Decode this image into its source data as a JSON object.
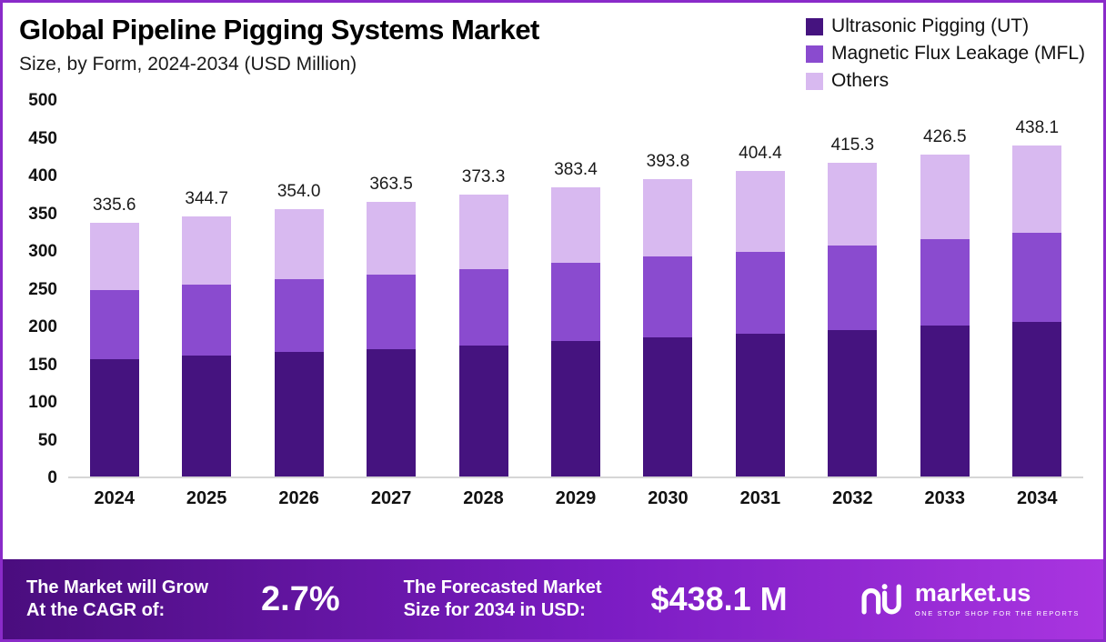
{
  "header": {
    "title": "Global Pipeline Pigging Systems Market",
    "subtitle": "Size, by Form, 2024-2034 (USD Million)"
  },
  "legend": [
    {
      "label": "Ultrasonic Pigging (UT)",
      "color": "#45137F"
    },
    {
      "label": "Magnetic Flux Leakage (MFL)",
      "color": "#8A4BCF"
    },
    {
      "label": "Others",
      "color": "#D8B9F0"
    }
  ],
  "chart_data": {
    "type": "bar",
    "stacked": true,
    "title": "Global Pipeline Pigging Systems Market Size, by Form, 2024-2034 (USD Million)",
    "xlabel": "",
    "ylabel": "USD Million",
    "ylim": [
      0,
      500
    ],
    "yticks": [
      0,
      50,
      100,
      150,
      200,
      250,
      300,
      350,
      400,
      450,
      500
    ],
    "grid": false,
    "legend_position": "top-right",
    "categories": [
      "2024",
      "2025",
      "2026",
      "2027",
      "2028",
      "2029",
      "2030",
      "2031",
      "2032",
      "2033",
      "2034"
    ],
    "series": [
      {
        "name": "Ultrasonic Pigging (UT)",
        "color": "#45137F",
        "values": [
          156,
          160,
          165,
          169,
          174,
          179,
          184,
          189,
          194,
          200,
          205
        ]
      },
      {
        "name": "Magnetic Flux Leakage (MFL)",
        "color": "#8A4BCF",
        "values": [
          91,
          94,
          96,
          99,
          101,
          104,
          107,
          109,
          112,
          115,
          118
        ]
      },
      {
        "name": "Others",
        "color": "#D8B9F0",
        "values": [
          88.6,
          90.7,
          93.0,
          95.5,
          98.3,
          100.4,
          102.8,
          106.4,
          109.3,
          111.5,
          115.1
        ]
      }
    ],
    "totals": [
      335.6,
      344.7,
      354.0,
      363.5,
      373.3,
      383.4,
      393.8,
      404.4,
      415.3,
      426.5,
      438.1
    ]
  },
  "footer": {
    "cagr_label_line1": "The Market will Grow",
    "cagr_label_line2": "At the CAGR of:",
    "cagr_value": "2.7%",
    "forecast_label_line1": "The Forecasted Market",
    "forecast_label_line2": "Size for 2034 in USD:",
    "forecast_value": "$438.1 M",
    "brand": "market.us",
    "tagline": "ONE STOP SHOP FOR THE REPORTS"
  }
}
